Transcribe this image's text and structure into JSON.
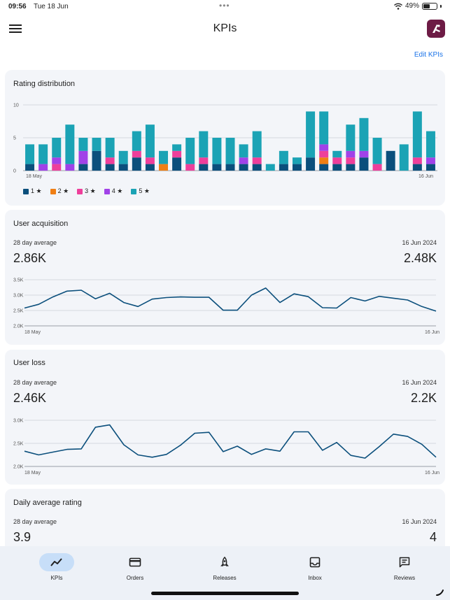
{
  "status": {
    "time": "09:56",
    "date": "Tue 18 Jun",
    "battery": "49%",
    "battery_level": 0.49,
    "dots": "•••"
  },
  "header": {
    "title": "KPIs",
    "edit_label": "Edit KPIs"
  },
  "rating_card": {
    "title": "Rating distribution",
    "legend": [
      {
        "label": "1 ★",
        "color": "#0b4f7c"
      },
      {
        "label": "2 ★",
        "color": "#f07f14"
      },
      {
        "label": "3 ★",
        "color": "#ee3f9b"
      },
      {
        "label": "4 ★",
        "color": "#a142e8"
      },
      {
        "label": "5 ★",
        "color": "#1ba3b5"
      }
    ]
  },
  "acquisition_card": {
    "title": "User acquisition",
    "avg_label": "28 day average",
    "date_label": "16 Jun 2024",
    "avg_value": "2.86K",
    "last_value": "2.48K"
  },
  "loss_card": {
    "title": "User loss",
    "avg_label": "28 day average",
    "date_label": "16 Jun 2024",
    "avg_value": "2.46K",
    "last_value": "2.2K"
  },
  "rating_avg_card": {
    "title": "Daily average rating",
    "avg_label": "28 day average",
    "date_label": "16 Jun 2024",
    "avg_value": "3.9",
    "last_value": "4"
  },
  "nav": [
    {
      "label": "KPIs",
      "icon": "trending-up-icon",
      "active": true
    },
    {
      "label": "Orders",
      "icon": "credit-card-icon",
      "active": false
    },
    {
      "label": "Releases",
      "icon": "rocket-icon",
      "active": false
    },
    {
      "label": "Inbox",
      "icon": "inbox-icon",
      "active": false
    },
    {
      "label": "Reviews",
      "icon": "reviews-icon",
      "active": false
    }
  ],
  "chart_data": [
    {
      "type": "bar",
      "stacked": true,
      "x_start_label": "18 May",
      "x_end_label": "16 Jun",
      "ylim": [
        0,
        10
      ],
      "yticks": [
        "0",
        "5",
        "10"
      ],
      "series": [
        {
          "name": "1 ★",
          "color": "#0b4f7c",
          "values": [
            1,
            0,
            0,
            0,
            1,
            3,
            1,
            1,
            2,
            1,
            0,
            2,
            0,
            1,
            1,
            1,
            1,
            1,
            0,
            1,
            1,
            2,
            1,
            1,
            1,
            2,
            0,
            3,
            0,
            1,
            1
          ]
        },
        {
          "name": "2 ★",
          "color": "#f07f14",
          "values": [
            0,
            0,
            0,
            0,
            0,
            0,
            0,
            0,
            0,
            0,
            1,
            0,
            0,
            0,
            0,
            0,
            0,
            0,
            0,
            0,
            0,
            0,
            1,
            0,
            0,
            0,
            0,
            0,
            0,
            0,
            0
          ]
        },
        {
          "name": "3 ★",
          "color": "#ee3f9b",
          "values": [
            0,
            0,
            1,
            0,
            0,
            0,
            1,
            0,
            1,
            1,
            0,
            1,
            1,
            1,
            0,
            0,
            0,
            1,
            0,
            0,
            0,
            0,
            1,
            1,
            1,
            0,
            1,
            0,
            0,
            1,
            0
          ]
        },
        {
          "name": "4 ★",
          "color": "#a142e8",
          "values": [
            0,
            1,
            1,
            1,
            2,
            0,
            0,
            0,
            0,
            0,
            0,
            0,
            0,
            0,
            0,
            0,
            1,
            0,
            0,
            0,
            0,
            0,
            1,
            0,
            1,
            1,
            0,
            0,
            0,
            0,
            1
          ]
        },
        {
          "name": "5 ★",
          "color": "#1ba3b5",
          "values": [
            3,
            3,
            3,
            6,
            2,
            2,
            3,
            2,
            3,
            5,
            2,
            1,
            4,
            4,
            4,
            4,
            2,
            4,
            1,
            2,
            1,
            7,
            5,
            1,
            4,
            5,
            4,
            0,
            4,
            7,
            4
          ]
        }
      ]
    },
    {
      "type": "line",
      "series_name": "User acquisition",
      "x_start_label": "18 May",
      "x_end_label": "16 Jun",
      "ylim": [
        2000,
        3500
      ],
      "yticks": [
        "2.0K",
        "2.5K",
        "3.0K",
        "3.5K"
      ],
      "values": [
        2580,
        2700,
        2940,
        3130,
        3160,
        2880,
        3060,
        2760,
        2630,
        2870,
        2920,
        2940,
        2930,
        2930,
        2510,
        2510,
        3000,
        3230,
        2760,
        3040,
        2950,
        2590,
        2580,
        2920,
        2810,
        2960,
        2900,
        2840,
        2630,
        2480
      ]
    },
    {
      "type": "line",
      "series_name": "User loss",
      "x_start_label": "18 May",
      "x_end_label": "16 Jun",
      "ylim": [
        2000,
        3000
      ],
      "yticks": [
        "2.0K",
        "2.5K",
        "3.0K"
      ],
      "values": [
        2330,
        2250,
        2310,
        2370,
        2380,
        2850,
        2900,
        2470,
        2250,
        2200,
        2260,
        2460,
        2720,
        2740,
        2320,
        2440,
        2260,
        2380,
        2330,
        2750,
        2750,
        2350,
        2520,
        2240,
        2180,
        2430,
        2700,
        2650,
        2480,
        2200
      ]
    }
  ]
}
